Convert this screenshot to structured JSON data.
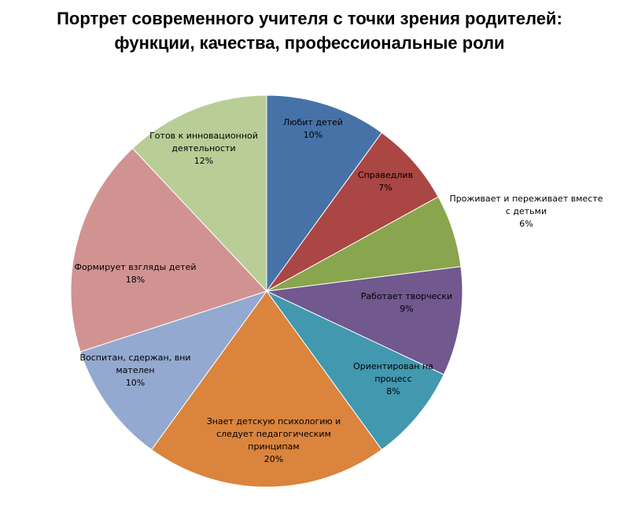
{
  "chart_data": {
    "type": "pie",
    "title_lines": [
      "Портрет современного учителя с точки зрения родителей:",
      "функции, качества, профессиональные роли"
    ],
    "slices": [
      {
        "label_lines": [
          "Любит детей"
        ],
        "pct_label": "10%",
        "value": 10,
        "color": "#4672A8"
      },
      {
        "label_lines": [
          "Справедлив"
        ],
        "pct_label": "7%",
        "value": 7,
        "color": "#AA4643"
      },
      {
        "label_lines": [
          "Проживает и переживает вместе",
          "с детьми"
        ],
        "pct_label": "6%",
        "value": 6,
        "color": "#89A54E"
      },
      {
        "label_lines": [
          "Работает творчески"
        ],
        "pct_label": "9%",
        "value": 9,
        "color": "#71588F"
      },
      {
        "label_lines": [
          "Ориентирован на",
          "процесс"
        ],
        "pct_label": "8%",
        "value": 8,
        "color": "#4198AF"
      },
      {
        "label_lines": [
          "Знает детскую психологию и",
          "следует педагогическим",
          "принципам"
        ],
        "pct_label": "20%",
        "value": 20,
        "color": "#DB843D"
      },
      {
        "label_lines": [
          "Воспитан, сдержан, вни",
          "мателен"
        ],
        "pct_label": "10%",
        "value": 10,
        "color": "#93A9CF"
      },
      {
        "label_lines": [
          "Формирует взгляды детей"
        ],
        "pct_label": "18%",
        "value": 18,
        "color": "#D19392"
      },
      {
        "label_lines": [
          "Готов к инновационной",
          "деятельности"
        ],
        "pct_label": "12%",
        "value": 12,
        "color": "#B9CD96"
      }
    ]
  }
}
